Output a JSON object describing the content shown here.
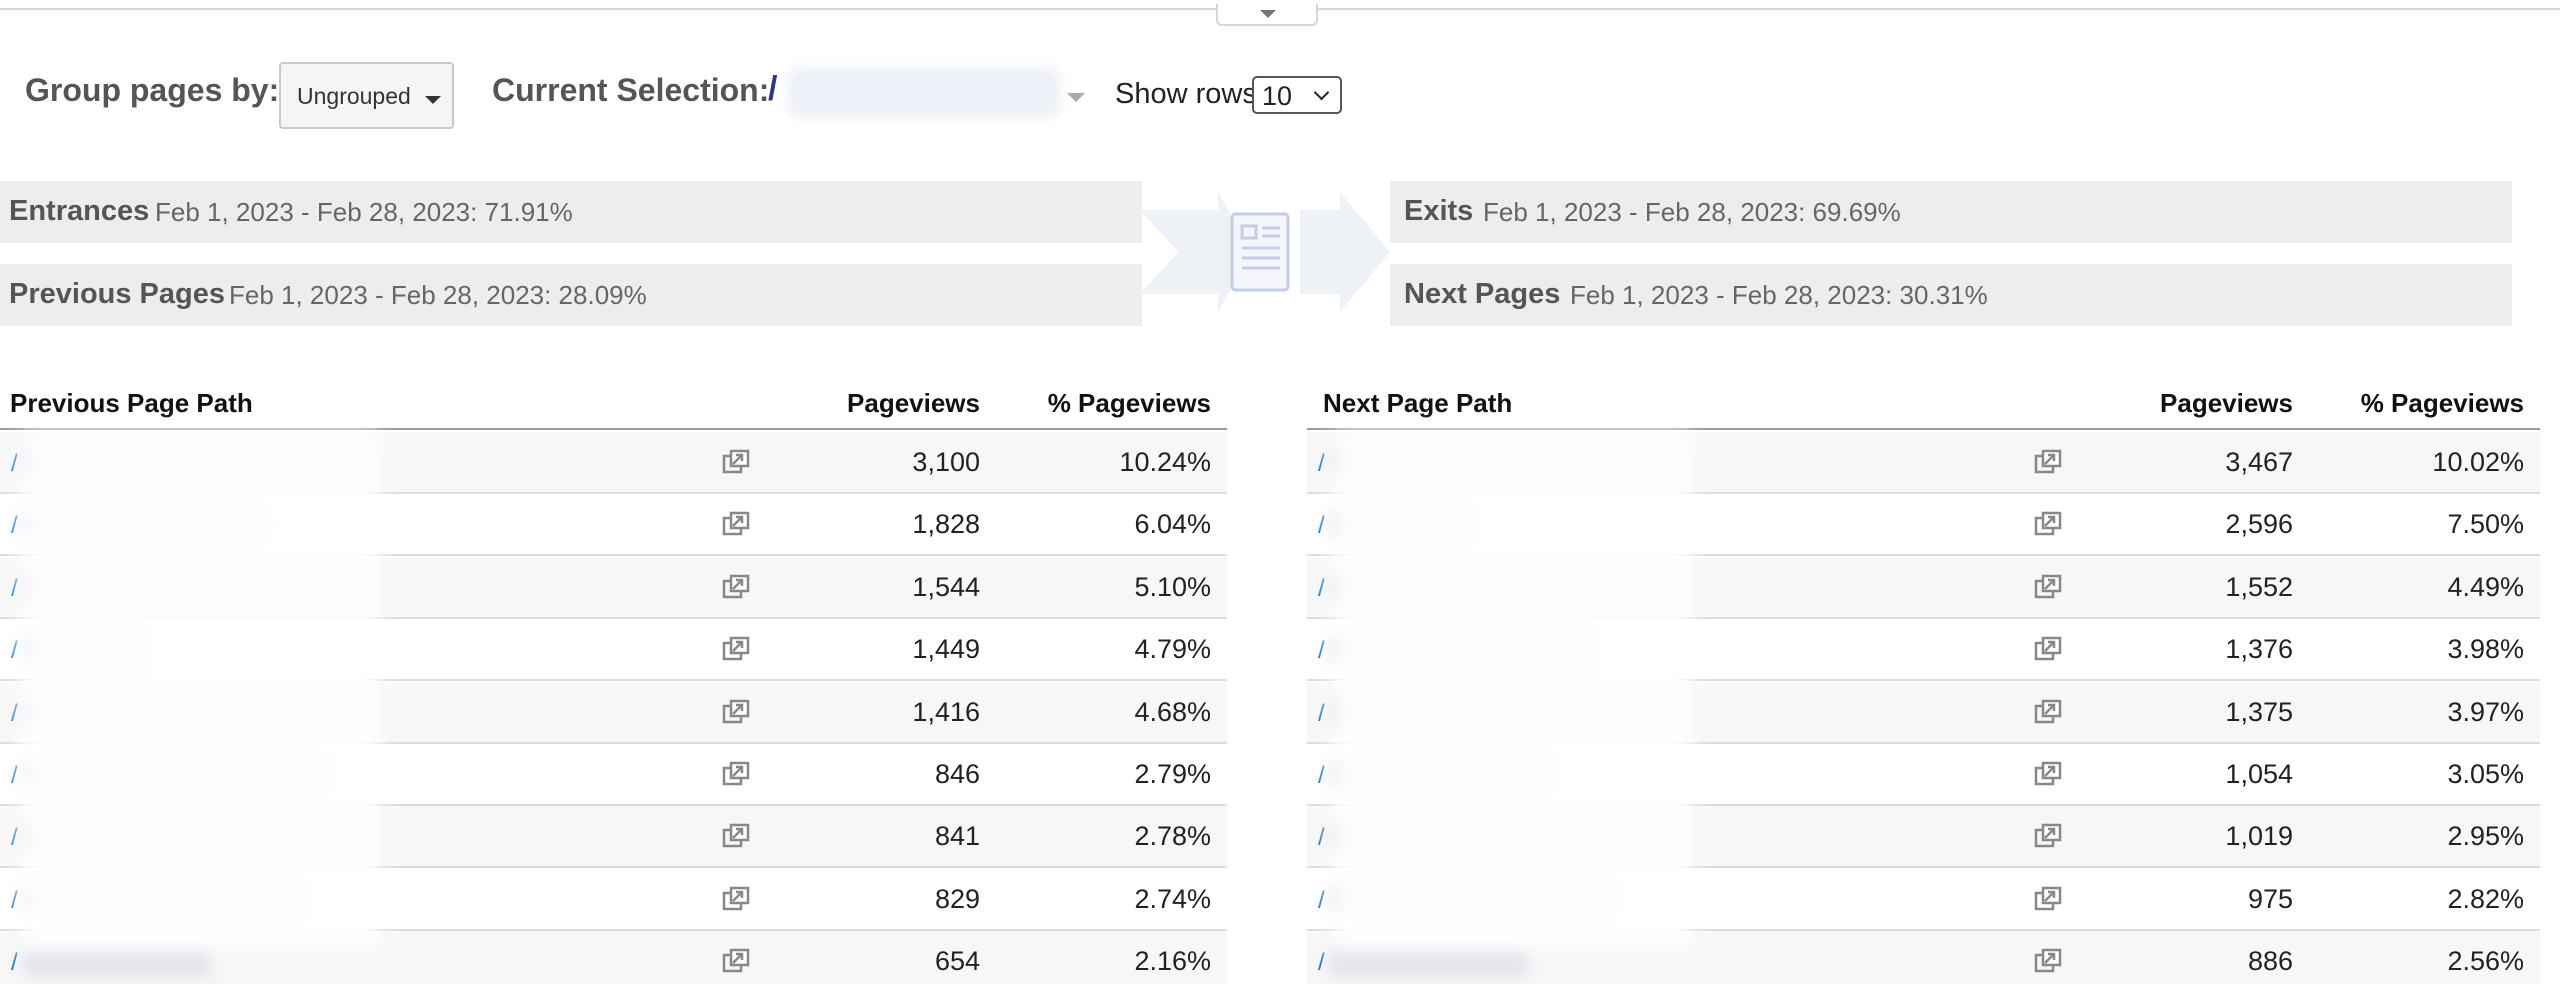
{
  "controls": {
    "group_label": "Group pages by:",
    "group_value": "Ungrouped",
    "selection_label": "Current Selection:",
    "selection_prefix": "/",
    "rows_label": "Show rows:",
    "rows_value": "10"
  },
  "summary": {
    "entrances": {
      "title": "Entrances",
      "detail": "Feb 1, 2023 - Feb 28, 2023: 71.91%"
    },
    "previous_pages": {
      "title": "Previous Pages",
      "detail": "Feb 1, 2023 - Feb 28, 2023: 28.09%"
    },
    "exits": {
      "title": "Exits",
      "detail": "Feb 1, 2023 - Feb 28, 2023: 69.69%"
    },
    "next_pages": {
      "title": "Next Pages",
      "detail": "Feb 1, 2023 - Feb 28, 2023: 30.31%"
    }
  },
  "previous_table": {
    "headers": {
      "path": "Previous Page Path",
      "pageviews": "Pageviews",
      "pct": "% Pageviews"
    },
    "rows": [
      {
        "path": "/",
        "pageviews": "3,100",
        "pct": "10.24%"
      },
      {
        "path": "/",
        "pageviews": "1,828",
        "pct": "6.04%"
      },
      {
        "path": "/",
        "pageviews": "1,544",
        "pct": "5.10%"
      },
      {
        "path": "/",
        "pageviews": "1,449",
        "pct": "4.79%"
      },
      {
        "path": "/",
        "pageviews": "1,416",
        "pct": "4.68%"
      },
      {
        "path": "/",
        "pageviews": "846",
        "pct": "2.79%"
      },
      {
        "path": "/",
        "pageviews": "841",
        "pct": "2.78%"
      },
      {
        "path": "/",
        "pageviews": "829",
        "pct": "2.74%"
      },
      {
        "path": "/",
        "pageviews": "654",
        "pct": "2.16%"
      }
    ]
  },
  "next_table": {
    "headers": {
      "path": "Next Page Path",
      "pageviews": "Pageviews",
      "pct": "% Pageviews"
    },
    "rows": [
      {
        "path": "/",
        "pageviews": "3,467",
        "pct": "10.02%"
      },
      {
        "path": "/",
        "pageviews": "2,596",
        "pct": "7.50%"
      },
      {
        "path": "/",
        "pageviews": "1,552",
        "pct": "4.49%"
      },
      {
        "path": "/",
        "pageviews": "1,376",
        "pct": "3.98%"
      },
      {
        "path": "/",
        "pageviews": "1,375",
        "pct": "3.97%"
      },
      {
        "path": "/",
        "pageviews": "1,054",
        "pct": "3.05%"
      },
      {
        "path": "/",
        "pageviews": "1,019",
        "pct": "2.95%"
      },
      {
        "path": "/",
        "pageviews": "975",
        "pct": "2.82%"
      },
      {
        "path": "/",
        "pageviews": "886",
        "pct": "2.56%"
      }
    ]
  },
  "icons": {
    "collapse": "chevron-down-icon",
    "open_page": "open-in-new-window-icon",
    "flow": "page-flow-icon"
  },
  "colors": {
    "band": "#ededed",
    "link": "#1a73c7",
    "selection_slash": "#2a3a8a"
  }
}
